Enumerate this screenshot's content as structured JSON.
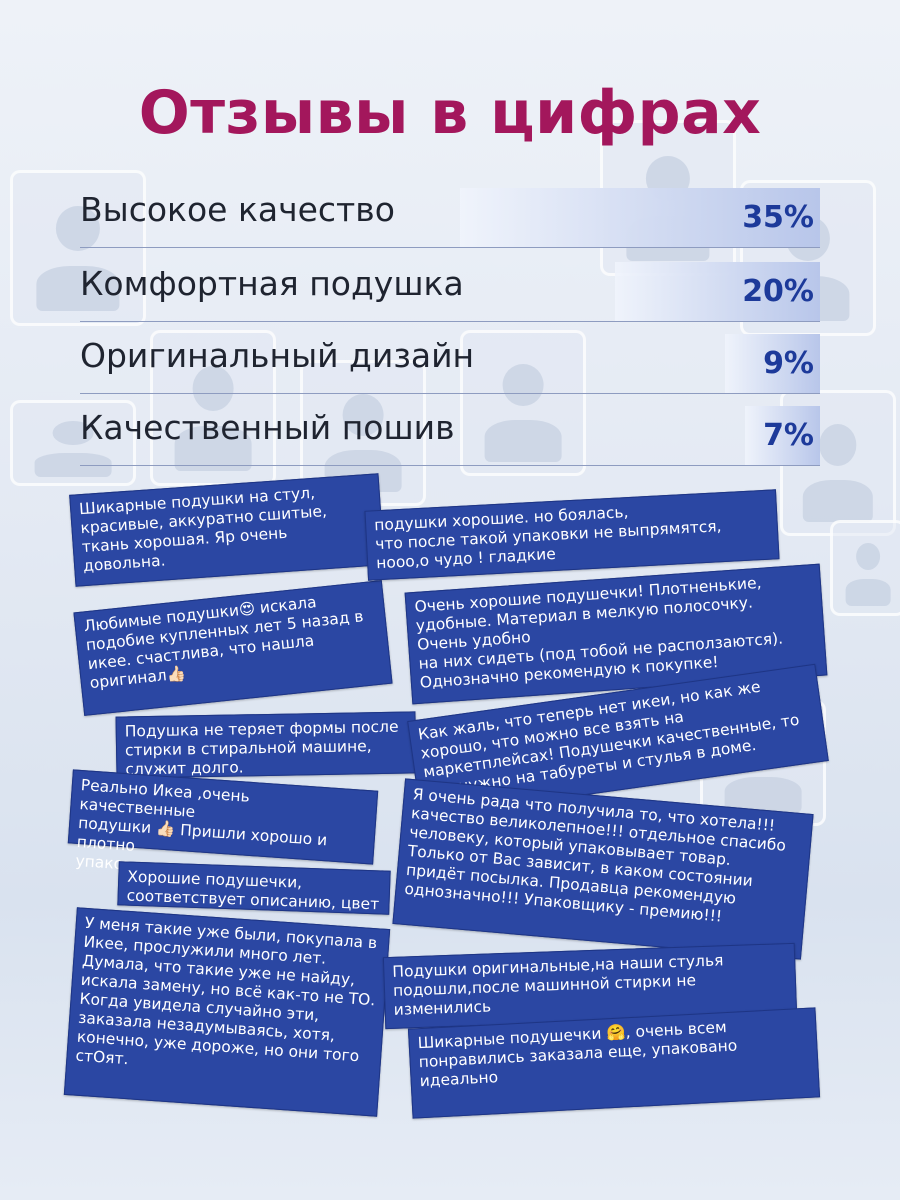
{
  "title": "Отзывы в цифрах",
  "stats": [
    {
      "label": "Высокое качество",
      "value": "35%",
      "percent": 35
    },
    {
      "label": "Комфортная подушка",
      "value": "20%",
      "percent": 20
    },
    {
      "label": "Оригинальный дизайн",
      "value": "9%",
      "percent": 9
    },
    {
      "label": "Качественный пошив",
      "value": "7%",
      "percent": 7
    }
  ],
  "reviews": [
    "Шикарные подушки на стул,\nкрасивые, аккуратно сшитые,\nткань хорошая. Яр очень\nдовольна.",
    "подушки хорошие. но боялась,\nчто после такой упаковки не выпрямятся,\nнооо,о чудо ! гладкие",
    "Любимые подушки😍 искала\nподобие купленных лет 5 назад в\nикее. счастлива, что нашла\nоригинал👍🏻",
    "Очень хорошие подушечки! Плотненькие,\nудобные. Материал в мелкую полосочку.\nОчень удобно\nна них сидеть (под тобой не расползаются).\nОднозначно рекомендую к покупке!",
    "Подушка не теряет формы после\nстирки в стиральной машине,\nслужит долго.",
    "Как жаль, что теперь нет икеи, но как же\nхорошо, что можно все взять на\nмаркетплейсах! Подушечки качественные, то\nчто нужно на табуреты и стулья в доме.",
    "Реально Икеа ,очень качественные\nподушки 👍🏻 Пришли хорошо и плотно\nупакованы",
    "Я очень рада что получила то, что хотела!!!\nкачество великолепное!!! отдельное спасибо\nчеловеку, который упаковывает товар.\nТолько от Вас зависит, в каком состоянии\nпридёт посылка. Продавца рекомендую\nоднозначно!!! Упаковщику - премию!!!",
    "Хорошие подушечки,\nсоответствует описанию, цвет",
    "У меня такие уже были, покупала в\nИкее, прослужили много лет.\nДумала, что такие уже не найду,\nискала замену, но всё как-то не ТО.\nКогда увидела случайно эти,\nзаказала незадумываясь, хотя,\nконечно, уже дороже, но они того\nстОят.",
    "Подушки оригинальные,на наши стулья\nподошли,после машинной стирки не\nизменились",
    "Шикарные подушечки 🤗, очень всем\nпонравились заказала еще, упаковано\nидеально"
  ]
}
